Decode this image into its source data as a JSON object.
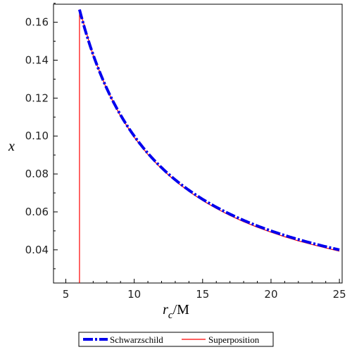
{
  "chart_data": {
    "type": "line",
    "title": "",
    "xlabel": {
      "main": "r",
      "sub": "c",
      "suffix": "/M"
    },
    "ylabel": "x",
    "xlim": [
      4.1,
      25.2
    ],
    "ylim": [
      0.0225,
      0.1695
    ],
    "x_ticks": [
      5,
      10,
      15,
      20,
      25
    ],
    "x_tick_labels": [
      "5",
      "10",
      "15",
      "20",
      "25"
    ],
    "y_ticks": [
      0.04,
      0.06,
      0.08,
      0.1,
      0.12,
      0.14,
      0.16
    ],
    "y_tick_labels": [
      "0.04",
      "0.06",
      "0.08",
      "0.10",
      "0.12",
      "0.14",
      "0.16"
    ],
    "grid": false,
    "legend_position": "bottom",
    "series": [
      {
        "name": "Schwarzschild",
        "color": "#0000ee",
        "style": "dash-dot",
        "x": [
          6,
          7,
          8,
          9,
          10,
          11,
          12,
          13,
          14,
          15,
          16,
          17,
          18,
          19,
          20,
          21,
          22,
          23,
          24,
          25
        ],
        "y": [
          0.1667,
          0.1429,
          0.125,
          0.1111,
          0.1,
          0.0909,
          0.0833,
          0.0769,
          0.0714,
          0.0667,
          0.0625,
          0.0588,
          0.0556,
          0.0526,
          0.05,
          0.0476,
          0.0455,
          0.0435,
          0.0417,
          0.04
        ]
      },
      {
        "name": "Superposition",
        "color": "#ff0000",
        "style": "solid",
        "x": [
          6,
          6,
          7,
          8,
          9,
          10,
          11,
          12,
          13,
          14,
          15,
          16,
          17,
          18,
          19,
          20,
          21,
          22,
          23,
          24,
          25
        ],
        "y": [
          0.0225,
          0.1667,
          0.1425,
          0.1245,
          0.1105,
          0.0994,
          0.0903,
          0.0827,
          0.0763,
          0.0708,
          0.066,
          0.0618,
          0.0581,
          0.0548,
          0.0519,
          0.0493,
          0.0469,
          0.0447,
          0.0428,
          0.041,
          0.0393
        ]
      }
    ]
  }
}
